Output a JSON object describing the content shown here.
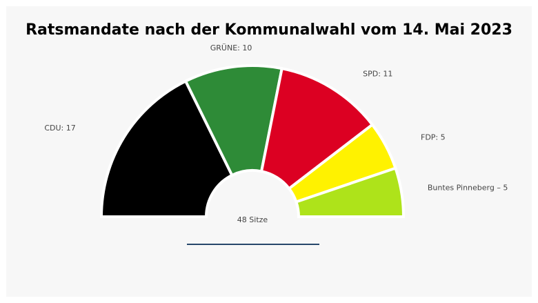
{
  "chart_data": {
    "type": "pie",
    "title": "Ratsmandate nach der Kommunalwahl vom 14. Mai 2023",
    "total_label": "48 Sitze",
    "categories": [
      "CDU",
      "GRÜNE",
      "SPD",
      "FDP",
      "Buntes Pinneberg"
    ],
    "values": [
      17,
      10,
      11,
      5,
      5
    ],
    "labels": [
      "CDU: 17",
      "GRÜNE: 10",
      "SPD: 11",
      "FDP: 5",
      "Buntes Pinneberg – 5"
    ],
    "colors": [
      "#000000",
      "#2e8b37",
      "#dc0022",
      "#fff200",
      "#aee31a"
    ],
    "shape": "semicircle-donut"
  }
}
